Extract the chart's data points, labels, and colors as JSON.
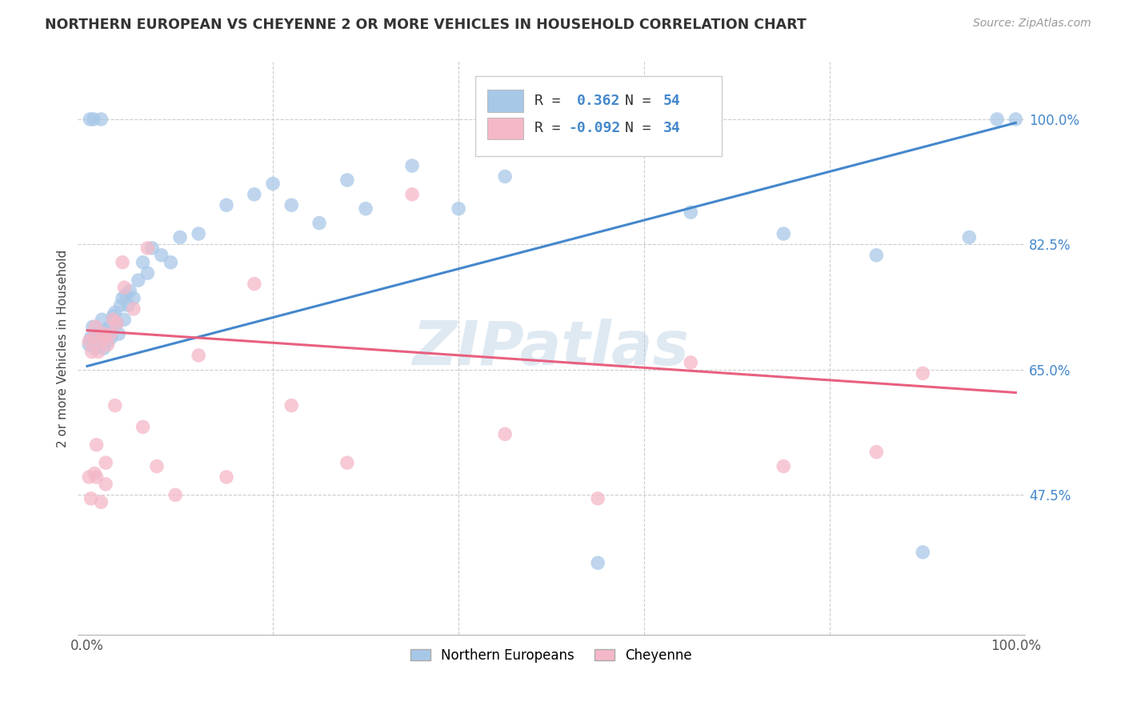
{
  "title": "NORTHERN EUROPEAN VS CHEYENNE 2 OR MORE VEHICLES IN HOUSEHOLD CORRELATION CHART",
  "source": "Source: ZipAtlas.com",
  "ylabel": "2 or more Vehicles in Household",
  "ytick_labels": [
    "47.5%",
    "65.0%",
    "82.5%",
    "100.0%"
  ],
  "ytick_values": [
    0.475,
    0.65,
    0.825,
    1.0
  ],
  "xlim": [
    -0.01,
    1.01
  ],
  "ylim": [
    0.28,
    1.08
  ],
  "blue_color": "#a8c8e8",
  "pink_color": "#f4b8c8",
  "blue_line_color": "#4488cc",
  "pink_line_color": "#e86080",
  "watermark": "ZIPatlas",
  "blue_scatter_x": [
    0.002,
    0.004,
    0.006,
    0.008,
    0.01,
    0.012,
    0.014,
    0.016,
    0.018,
    0.02,
    0.022,
    0.024,
    0.026,
    0.028,
    0.03,
    0.032,
    0.034,
    0.036,
    0.038,
    0.04,
    0.042,
    0.044,
    0.046,
    0.05,
    0.055,
    0.06,
    0.065,
    0.07,
    0.08,
    0.09,
    0.1,
    0.12,
    0.15,
    0.18,
    0.2,
    0.22,
    0.25,
    0.28,
    0.3,
    0.35,
    0.4,
    0.45,
    0.5,
    0.55,
    0.65,
    0.75,
    0.85,
    0.9,
    0.95,
    0.98,
    0.003,
    0.007,
    0.015,
    1.0
  ],
  "blue_scatter_y": [
    0.685,
    0.695,
    0.71,
    0.68,
    0.7,
    0.685,
    0.695,
    0.72,
    0.68,
    0.705,
    0.69,
    0.71,
    0.695,
    0.725,
    0.73,
    0.715,
    0.7,
    0.74,
    0.75,
    0.72,
    0.755,
    0.74,
    0.76,
    0.75,
    0.775,
    0.8,
    0.785,
    0.82,
    0.81,
    0.8,
    0.835,
    0.84,
    0.88,
    0.895,
    0.91,
    0.88,
    0.855,
    0.915,
    0.875,
    0.935,
    0.875,
    0.92,
    0.99,
    0.38,
    0.87,
    0.84,
    0.81,
    0.395,
    0.835,
    1.0,
    1.0,
    1.0,
    1.0,
    1.0
  ],
  "pink_scatter_x": [
    0.002,
    0.005,
    0.007,
    0.009,
    0.012,
    0.015,
    0.017,
    0.019,
    0.022,
    0.025,
    0.028,
    0.032,
    0.038,
    0.04,
    0.05,
    0.06,
    0.075,
    0.095,
    0.12,
    0.15,
    0.18,
    0.22,
    0.28,
    0.35,
    0.45,
    0.55,
    0.65,
    0.75,
    0.85,
    0.9,
    0.01,
    0.02,
    0.03,
    0.065
  ],
  "pink_scatter_y": [
    0.69,
    0.675,
    0.695,
    0.71,
    0.675,
    0.69,
    0.7,
    0.695,
    0.685,
    0.7,
    0.72,
    0.715,
    0.8,
    0.765,
    0.735,
    0.57,
    0.515,
    0.475,
    0.67,
    0.5,
    0.77,
    0.6,
    0.52,
    0.895,
    0.56,
    0.47,
    0.66,
    0.515,
    0.535,
    0.645,
    0.5,
    0.49,
    0.6,
    0.82
  ],
  "pink_scatter_x2": [
    0.002,
    0.004,
    0.008,
    0.01,
    0.015,
    0.02
  ],
  "pink_scatter_y2": [
    0.5,
    0.47,
    0.505,
    0.545,
    0.465,
    0.52
  ],
  "blue_trend_x": [
    0.0,
    1.0
  ],
  "blue_trend_y": [
    0.655,
    0.995
  ],
  "pink_trend_x": [
    0.0,
    1.0
  ],
  "pink_trend_y": [
    0.705,
    0.618
  ]
}
